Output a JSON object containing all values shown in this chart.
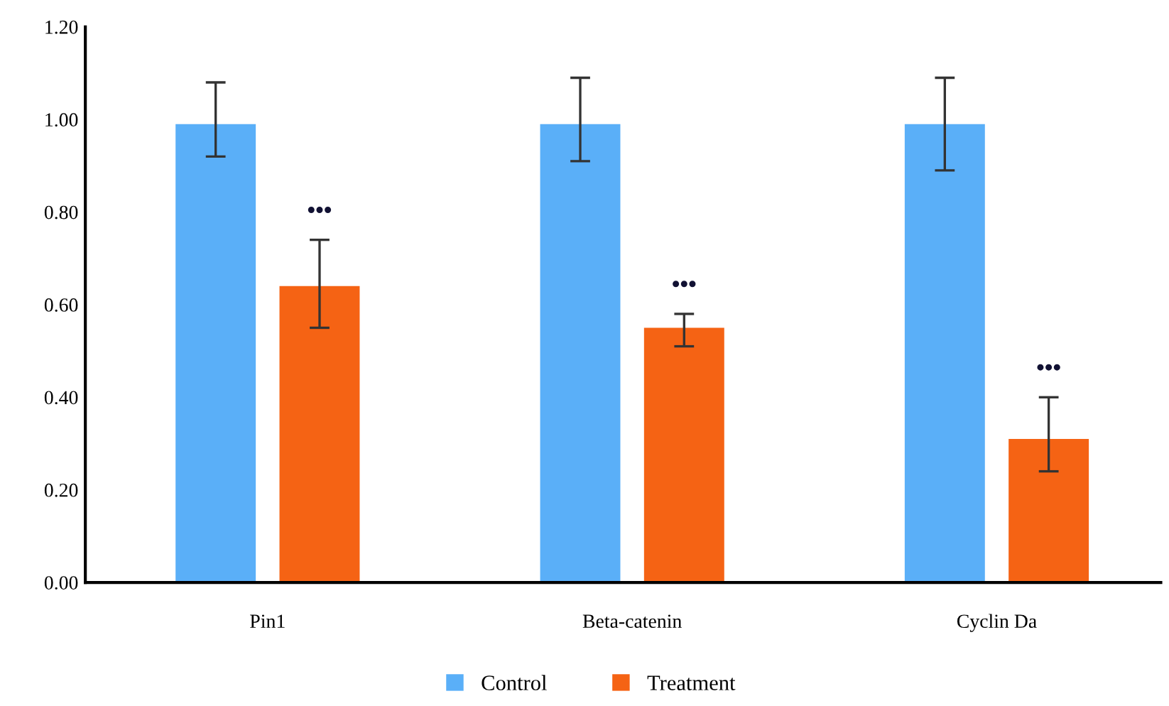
{
  "chart_data": {
    "type": "bar",
    "categories": [
      "Pin1",
      "Beta-catenin",
      "Cyclin Da"
    ],
    "series": [
      {
        "name": "Control",
        "color": "#5aaff8",
        "values": [
          0.99,
          0.99,
          0.99
        ],
        "errors": [
          [
            0.92,
            1.08
          ],
          [
            0.91,
            1.09
          ],
          [
            0.89,
            1.09
          ]
        ]
      },
      {
        "name": "Treatment",
        "color": "#f56314",
        "values": [
          0.64,
          0.55,
          0.31
        ],
        "errors": [
          [
            0.55,
            0.74
          ],
          [
            0.51,
            0.58
          ],
          [
            0.24,
            0.4
          ]
        ]
      }
    ],
    "ylim": [
      0,
      1.2
    ],
    "yticks": [
      {
        "value": 0,
        "label": "0.00"
      },
      {
        "value": 0.2,
        "label": "0.20"
      },
      {
        "value": 0.4,
        "label": "0.40"
      },
      {
        "value": 0.6,
        "label": "0.60"
      },
      {
        "value": 0.8,
        "label": "0.80"
      },
      {
        "value": 1.0,
        "label": "1.00"
      },
      {
        "value": 1.2,
        "label": "1.20"
      }
    ],
    "annotations": [
      "•••",
      "•••",
      "•••"
    ],
    "grid": false,
    "legend": "bottom"
  }
}
